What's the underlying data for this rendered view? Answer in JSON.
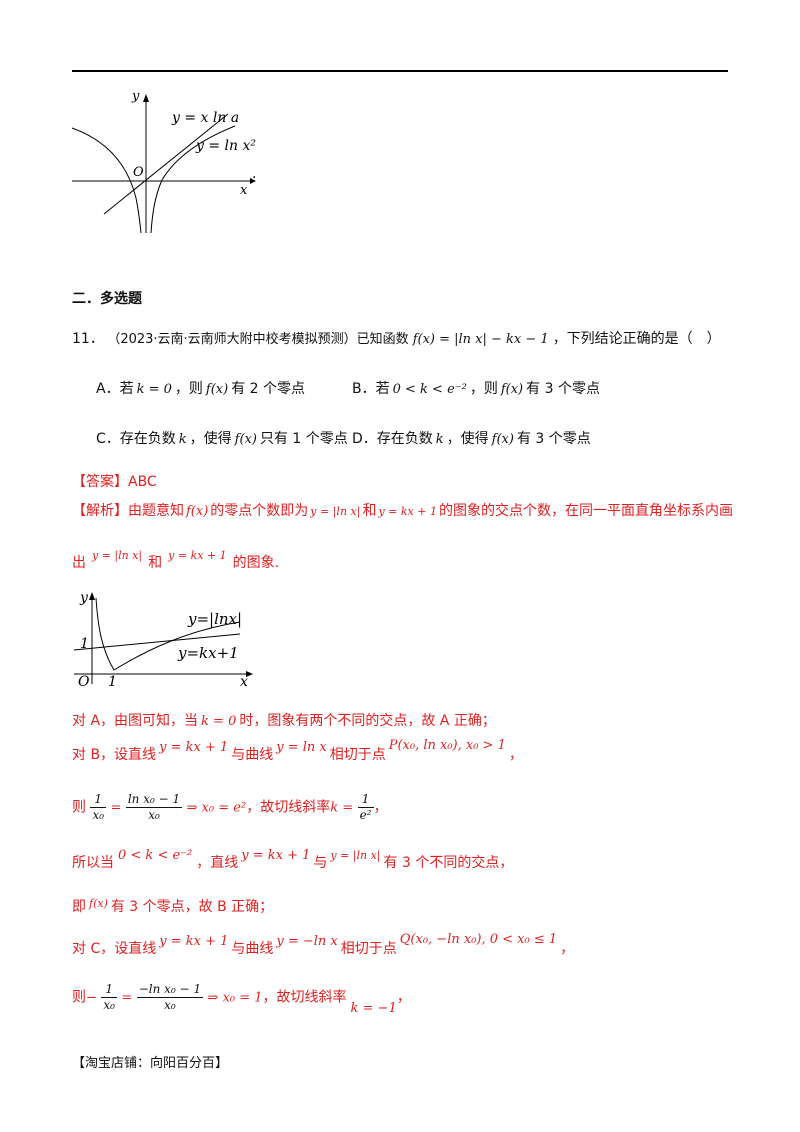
{
  "fig1": {
    "y_label": "y",
    "x_label": "x",
    "origin": "O",
    "line1": "y = x ln a",
    "line2": "y = ln x²",
    "trail": "."
  },
  "section": {
    "title": "二．多选题"
  },
  "q11": {
    "num": "11．",
    "source": "（2023·云南·云南师大附中校考模拟预测）已知函数",
    "func": "f(x) = |ln x| − kx − 1",
    "tail": "，下列结论正确的是（　）",
    "options": [
      {
        "letter": "A．若",
        "cond": "k = 0",
        "mid": "，则",
        "f": "f(x)",
        "end": "有 2 个零点"
      },
      {
        "letter": "B．若",
        "cond": "0 < k < e⁻²",
        "mid": "，则",
        "f": "f(x)",
        "end": "有 3 个零点"
      },
      {
        "letter": "C．存在负数",
        "cond": "k",
        "mid": "，使得",
        "f": "f(x)",
        "end": "只有 1 个零点"
      },
      {
        "letter": "D．存在负数",
        "cond": "k",
        "mid": "，使得",
        "f": "f(x)",
        "end": "有 3 个零点"
      }
    ]
  },
  "answer": {
    "tag": "【答案】",
    "value": "ABC"
  },
  "analysis": {
    "tag": "【解析】",
    "l1_a": "由题意知",
    "l1_f": "f(x)",
    "l1_b": "的零点个数即为",
    "l1_m1": "y = |ln x|",
    "l1_c": "和",
    "l1_m2": "y = kx + 1",
    "l1_d": "的图象的交点个数，在同一平面直角坐标系内画",
    "l2_a": "出",
    "l2_m1": "y = |ln x|",
    "l2_b": "和",
    "l2_m2": "y = kx + 1",
    "l2_c": "的图象."
  },
  "fig2": {
    "y_label": "y",
    "x_label": "x",
    "origin": "O",
    "one_x": "1",
    "one_y": "1",
    "curve_label": "y=|lnx|",
    "line_label": "y=kx+1"
  },
  "lines": {
    "a_pre": "对 A，由图可知，当",
    "a_m": "k = 0",
    "a_post": "时，图象有两个不同的交点，故 A 正确；",
    "b_pre": "对 B，设直线",
    "b_m1": "y = kx + 1",
    "b_mid": "与曲线",
    "b_m2": "y = ln x",
    "b_mid2": "相切于点",
    "b_m3": "P(x₀, ln x₀), x₀ > 1",
    "b_end": "，",
    "c1_pre": "则",
    "c1_n1": "1",
    "c1_d1": "x₀",
    "c1_eq": "=",
    "c1_n2": "ln x₀ − 1",
    "c1_d2": "x₀",
    "c1_arrow": "⇒ x₀ = e²",
    "c1_mid": "，故切线斜率",
    "c1_k": "k =",
    "c1_n3": "1",
    "c1_d3": "e²",
    "c1_end": "，",
    "d_pre": "所以当",
    "d_m1": "0 < k < e⁻²",
    "d_mid": "，直线",
    "d_m2": "y = kx + 1",
    "d_mid2": "与",
    "d_m3": "y = |ln x|",
    "d_end": "有 3 个不同的交点，",
    "e_pre": "即",
    "e_f": "f(x)",
    "e_end": "有 3 个零点，故 B 正确；",
    "f_pre": "对 C，设直线",
    "f_m1": "y = kx + 1",
    "f_mid": "与曲线",
    "f_m2": "y = −ln x",
    "f_mid2": "相切于点",
    "f_m3": "Q(x₀, −ln x₀), 0 < x₀ ≤ 1",
    "f_end": "，",
    "g_pre": "则",
    "g_neg": "−",
    "g_n1": "1",
    "g_d1": "x₀",
    "g_eq": "=",
    "g_n2": "−ln x₀ − 1",
    "g_d2": "x₀",
    "g_arrow": "⇒ x₀ = 1",
    "g_mid": "，故切线斜率",
    "g_k": "k = −1",
    "g_end": "，"
  },
  "footer": "【淘宝店铺：向阳百分百】"
}
